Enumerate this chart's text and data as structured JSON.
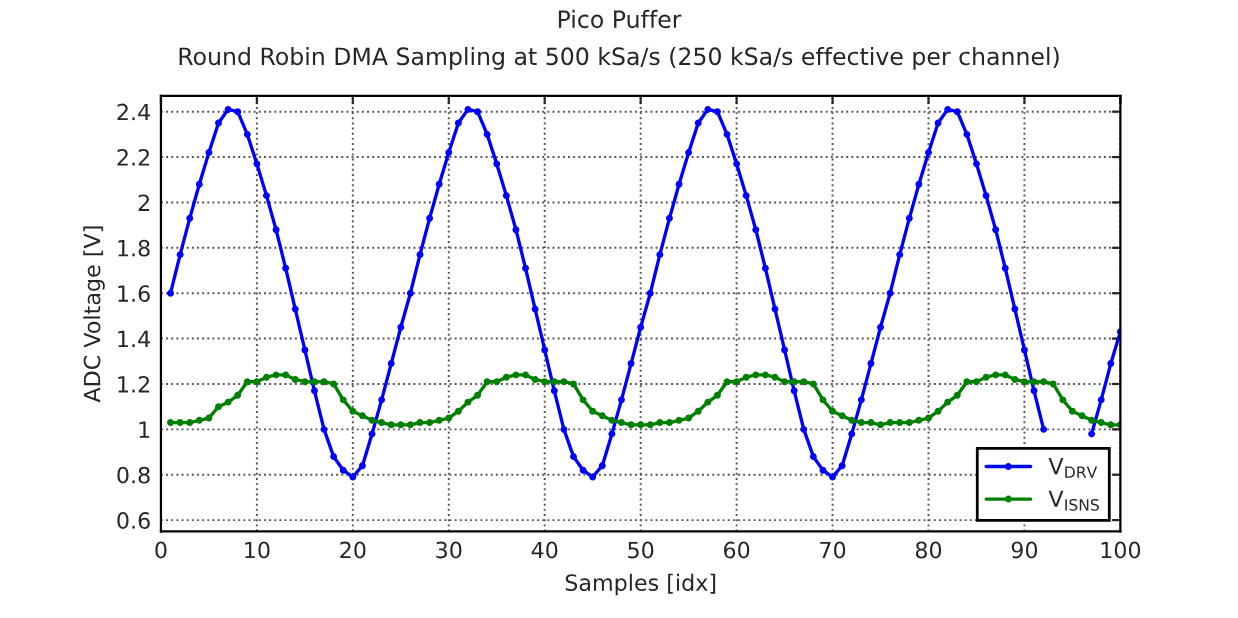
{
  "chart_data": {
    "type": "line",
    "title": "Pico Puffer",
    "subtitle": "Round Robin DMA Sampling at 500 kSa/s (250 kSa/s effective per channel)",
    "xlabel": "Samples [idx]",
    "ylabel": "ADC Voltage [V]",
    "x": [
      1,
      2,
      3,
      4,
      5,
      6,
      7,
      8,
      9,
      10,
      11,
      12,
      13,
      14,
      15,
      16,
      17,
      18,
      19,
      20,
      21,
      22,
      23,
      24,
      25,
      26,
      27,
      28,
      29,
      30,
      31,
      32,
      33,
      34,
      35,
      36,
      37,
      38,
      39,
      40,
      41,
      42,
      43,
      44,
      45,
      46,
      47,
      48,
      49,
      50,
      51,
      52,
      53,
      54,
      55,
      56,
      57,
      58,
      59,
      60,
      61,
      62,
      63,
      64,
      65,
      66,
      67,
      68,
      69,
      70,
      71,
      72,
      73,
      74,
      75,
      76,
      77,
      78,
      79,
      80,
      81,
      82,
      83,
      84,
      85,
      86,
      87,
      88,
      89,
      90,
      91,
      92,
      93,
      94,
      95,
      96,
      97,
      98,
      99,
      100
    ],
    "series": [
      {
        "name": "V$_{DRV}$",
        "color": "#0000ff",
        "values": [
          1.6,
          1.77,
          1.93,
          2.08,
          2.22,
          2.35,
          2.41,
          2.4,
          2.3,
          2.17,
          2.03,
          1.88,
          1.71,
          1.53,
          1.35,
          1.17,
          1.0,
          0.88,
          0.82,
          0.79,
          0.84,
          0.98,
          1.13,
          1.29,
          1.45,
          1.6,
          1.77,
          1.93,
          2.08,
          2.22,
          2.35,
          2.41,
          2.4,
          2.3,
          2.17,
          2.03,
          1.88,
          1.71,
          1.53,
          1.35,
          1.17,
          1.0,
          0.88,
          0.82,
          0.79,
          0.84,
          0.98,
          1.13,
          1.29,
          1.45,
          1.6,
          1.77,
          1.93,
          2.08,
          2.22,
          2.35,
          2.41,
          2.4,
          2.3,
          2.17,
          2.03,
          1.88,
          1.71,
          1.53,
          1.35,
          1.17,
          1.0,
          0.88,
          0.82,
          0.79,
          0.84,
          0.98,
          1.13,
          1.29,
          1.45,
          1.6,
          1.77,
          1.93,
          2.08,
          2.22,
          2.35,
          2.41,
          2.4,
          2.3,
          2.17,
          2.03,
          1.88,
          1.71,
          1.53,
          1.35,
          1.17,
          1.0,
          null,
          null,
          null,
          null,
          0.98,
          1.13,
          1.29,
          1.43
        ]
      },
      {
        "name": "V$_{ISNS}$",
        "color": "#008000",
        "values": [
          1.03,
          1.03,
          1.03,
          1.04,
          1.05,
          1.1,
          1.12,
          1.15,
          1.21,
          1.21,
          1.23,
          1.24,
          1.24,
          1.22,
          1.21,
          1.21,
          1.21,
          1.2,
          1.13,
          1.08,
          1.06,
          1.04,
          1.03,
          1.02,
          1.02,
          1.02,
          1.03,
          1.03,
          1.04,
          1.05,
          1.08,
          1.12,
          1.15,
          1.21,
          1.21,
          1.23,
          1.24,
          1.24,
          1.22,
          1.21,
          1.21,
          1.21,
          1.2,
          1.13,
          1.08,
          1.06,
          1.04,
          1.03,
          1.02,
          1.02,
          1.02,
          1.03,
          1.03,
          1.04,
          1.05,
          1.08,
          1.12,
          1.15,
          1.21,
          1.21,
          1.23,
          1.24,
          1.24,
          1.23,
          1.21,
          1.21,
          1.21,
          1.2,
          1.13,
          1.08,
          1.06,
          1.04,
          1.03,
          1.03,
          1.02,
          1.03,
          1.03,
          1.03,
          1.04,
          1.05,
          1.08,
          1.12,
          1.15,
          1.21,
          1.21,
          1.23,
          1.24,
          1.24,
          1.22,
          1.21,
          1.21,
          1.21,
          1.2,
          1.13,
          1.08,
          1.06,
          1.04,
          1.03,
          1.02,
          1.02
        ]
      }
    ],
    "xlim": [
      0,
      100
    ],
    "xticks": [
      0,
      10,
      20,
      30,
      40,
      50,
      60,
      70,
      80,
      90,
      100
    ],
    "ylim": [
      0.55,
      2.47
    ],
    "yticks": [
      0.6,
      0.8,
      1,
      1.2,
      1.4,
      1.6,
      1.8,
      2,
      2.2,
      2.4
    ],
    "grid": true,
    "legend": "bottom right",
    "marker": "circle",
    "line_style": "solid"
  }
}
